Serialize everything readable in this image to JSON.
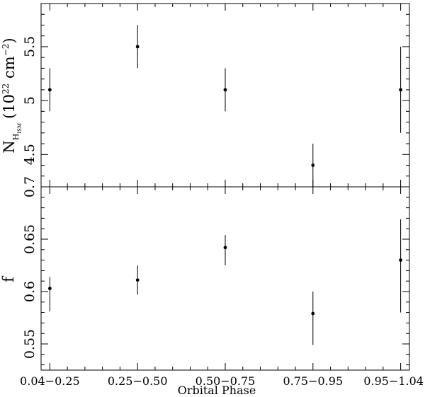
{
  "chart_data": [
    {
      "type": "scatter",
      "panel": "top",
      "ylabel": {
        "main": "N",
        "sub": "H",
        "subsub": "ISM",
        "open": "(10",
        "exp": "22",
        "unit": " cm",
        "unit_exp": "−2",
        "close": ")"
      },
      "ylim": [
        4.2,
        5.9
      ],
      "yticks": [
        {
          "v": 4.5,
          "label": "4.5"
        },
        {
          "v": 5,
          "label": "5"
        },
        {
          "v": 5.5,
          "label": "5.5"
        }
      ],
      "x": [
        1,
        2,
        3,
        4,
        5
      ],
      "y": [
        5.1,
        5.5,
        5.1,
        4.4,
        5.1
      ],
      "yerr": [
        [
          0.2,
          0.2
        ],
        [
          0.2,
          0.2
        ],
        [
          0.2,
          0.2
        ],
        [
          0.2,
          0.2
        ],
        [
          0.4,
          0.4
        ]
      ]
    },
    {
      "type": "scatter",
      "panel": "bottom",
      "ylabel": "f",
      "ylim": [
        0.525,
        0.7
      ],
      "yticks": [
        {
          "v": 0.55,
          "label": "0.55"
        },
        {
          "v": 0.6,
          "label": "0.6"
        },
        {
          "v": 0.65,
          "label": "0.65"
        },
        {
          "v": 0.7,
          "label": "0.7"
        }
      ],
      "x": [
        1,
        2,
        3,
        4,
        5
      ],
      "y": [
        0.603,
        0.611,
        0.642,
        0.579,
        0.63
      ],
      "yerr": [
        [
          0.022,
          0.011
        ],
        [
          0.014,
          0.014
        ],
        [
          0.017,
          0.012
        ],
        [
          0.03,
          0.021
        ],
        [
          0.05,
          0.039
        ]
      ]
    }
  ],
  "xaxis": {
    "xlabel": "Orbital Phase",
    "categories": [
      "0.04−0.25",
      "0.25−0.50",
      "0.50−0.75",
      "0.75−0.95",
      "0.95−1.04"
    ],
    "xlim": [
      0.9,
      5.1
    ]
  }
}
